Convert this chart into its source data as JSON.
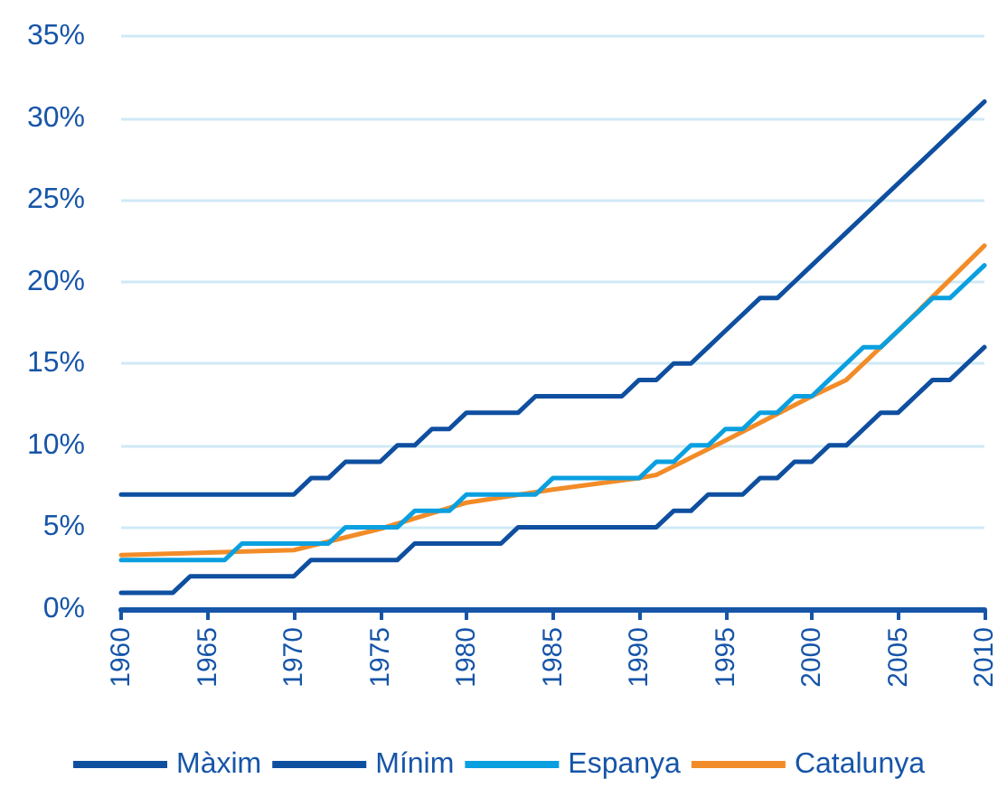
{
  "chart_data": {
    "type": "line",
    "marker": "none",
    "line_style": "solid",
    "grid": "y",
    "legend": "bottom",
    "xlim": [
      1960,
      2010
    ],
    "xticks": [
      1960,
      1965,
      1970,
      1975,
      1980,
      1985,
      1990,
      1995,
      2000,
      2005,
      2010
    ],
    "ylim": [
      0,
      35
    ],
    "yticks": [
      {
        "value": 0,
        "label": "0%"
      },
      {
        "value": 5,
        "label": "5%"
      },
      {
        "value": 10,
        "label": "10%"
      },
      {
        "value": 15,
        "label": "15%"
      },
      {
        "value": 20,
        "label": "20%"
      },
      {
        "value": 25,
        "label": "25%"
      },
      {
        "value": 30,
        "label": "30%"
      },
      {
        "value": 35,
        "label": "35%"
      }
    ],
    "x": [
      1960,
      1961,
      1962,
      1963,
      1964,
      1965,
      1966,
      1967,
      1968,
      1969,
      1970,
      1971,
      1972,
      1973,
      1974,
      1975,
      1976,
      1977,
      1978,
      1979,
      1980,
      1981,
      1982,
      1983,
      1984,
      1985,
      1986,
      1987,
      1988,
      1989,
      1990,
      1991,
      1992,
      1993,
      1994,
      1995,
      1996,
      1997,
      1998,
      1999,
      2000,
      2001,
      2002,
      2003,
      2004,
      2005,
      2006,
      2007,
      2008,
      2009,
      2010
    ],
    "series": [
      {
        "name": "Màxim",
        "color": "#0f4fa0",
        "values": [
          7,
          7,
          7,
          7,
          7,
          7,
          7,
          7,
          7,
          7,
          7,
          8,
          8,
          9,
          9,
          9,
          10,
          10,
          11,
          11,
          12,
          12,
          12,
          12,
          13,
          13,
          13,
          13,
          13,
          13,
          14,
          14,
          15,
          15,
          16,
          17,
          18,
          19,
          19,
          20,
          21,
          22,
          23,
          24,
          25,
          26,
          27,
          28,
          29,
          30,
          31
        ]
      },
      {
        "name": "Mínim",
        "color": "#0f4fa0",
        "values": [
          1,
          1,
          1,
          1,
          2,
          2,
          2,
          2,
          2,
          2,
          2,
          3,
          3,
          3,
          3,
          3,
          3,
          4,
          4,
          4,
          4,
          4,
          4,
          5,
          5,
          5,
          5,
          5,
          5,
          5,
          5,
          5,
          6,
          6,
          7,
          7,
          7,
          8,
          8,
          9,
          9,
          10,
          10,
          11,
          12,
          12,
          13,
          14,
          14,
          15,
          16
        ]
      },
      {
        "name": "Espanya",
        "color": "#0aa0e0",
        "values": [
          3,
          3,
          3,
          3,
          3,
          3,
          3,
          4,
          4,
          4,
          4,
          4,
          4,
          5,
          5,
          5,
          5,
          6,
          6,
          6,
          7,
          7,
          7,
          7,
          7,
          8,
          8,
          8,
          8,
          8,
          8,
          9,
          9,
          10,
          10,
          11,
          11,
          12,
          12,
          13,
          13,
          14,
          15,
          16,
          16,
          17,
          18,
          19,
          19,
          20,
          21
        ]
      },
      {
        "name": "Catalunya",
        "color": "#f28c28",
        "x": [
          1960,
          1970,
          1975,
          1980,
          1985,
          1990,
          1991,
          1995,
          2000,
          2002,
          2005,
          2010
        ],
        "values": [
          3.3,
          3.6,
          4.9,
          6.5,
          7.3,
          8.0,
          8.2,
          10.3,
          13.0,
          14.0,
          17.0,
          22.2
        ]
      }
    ]
  }
}
